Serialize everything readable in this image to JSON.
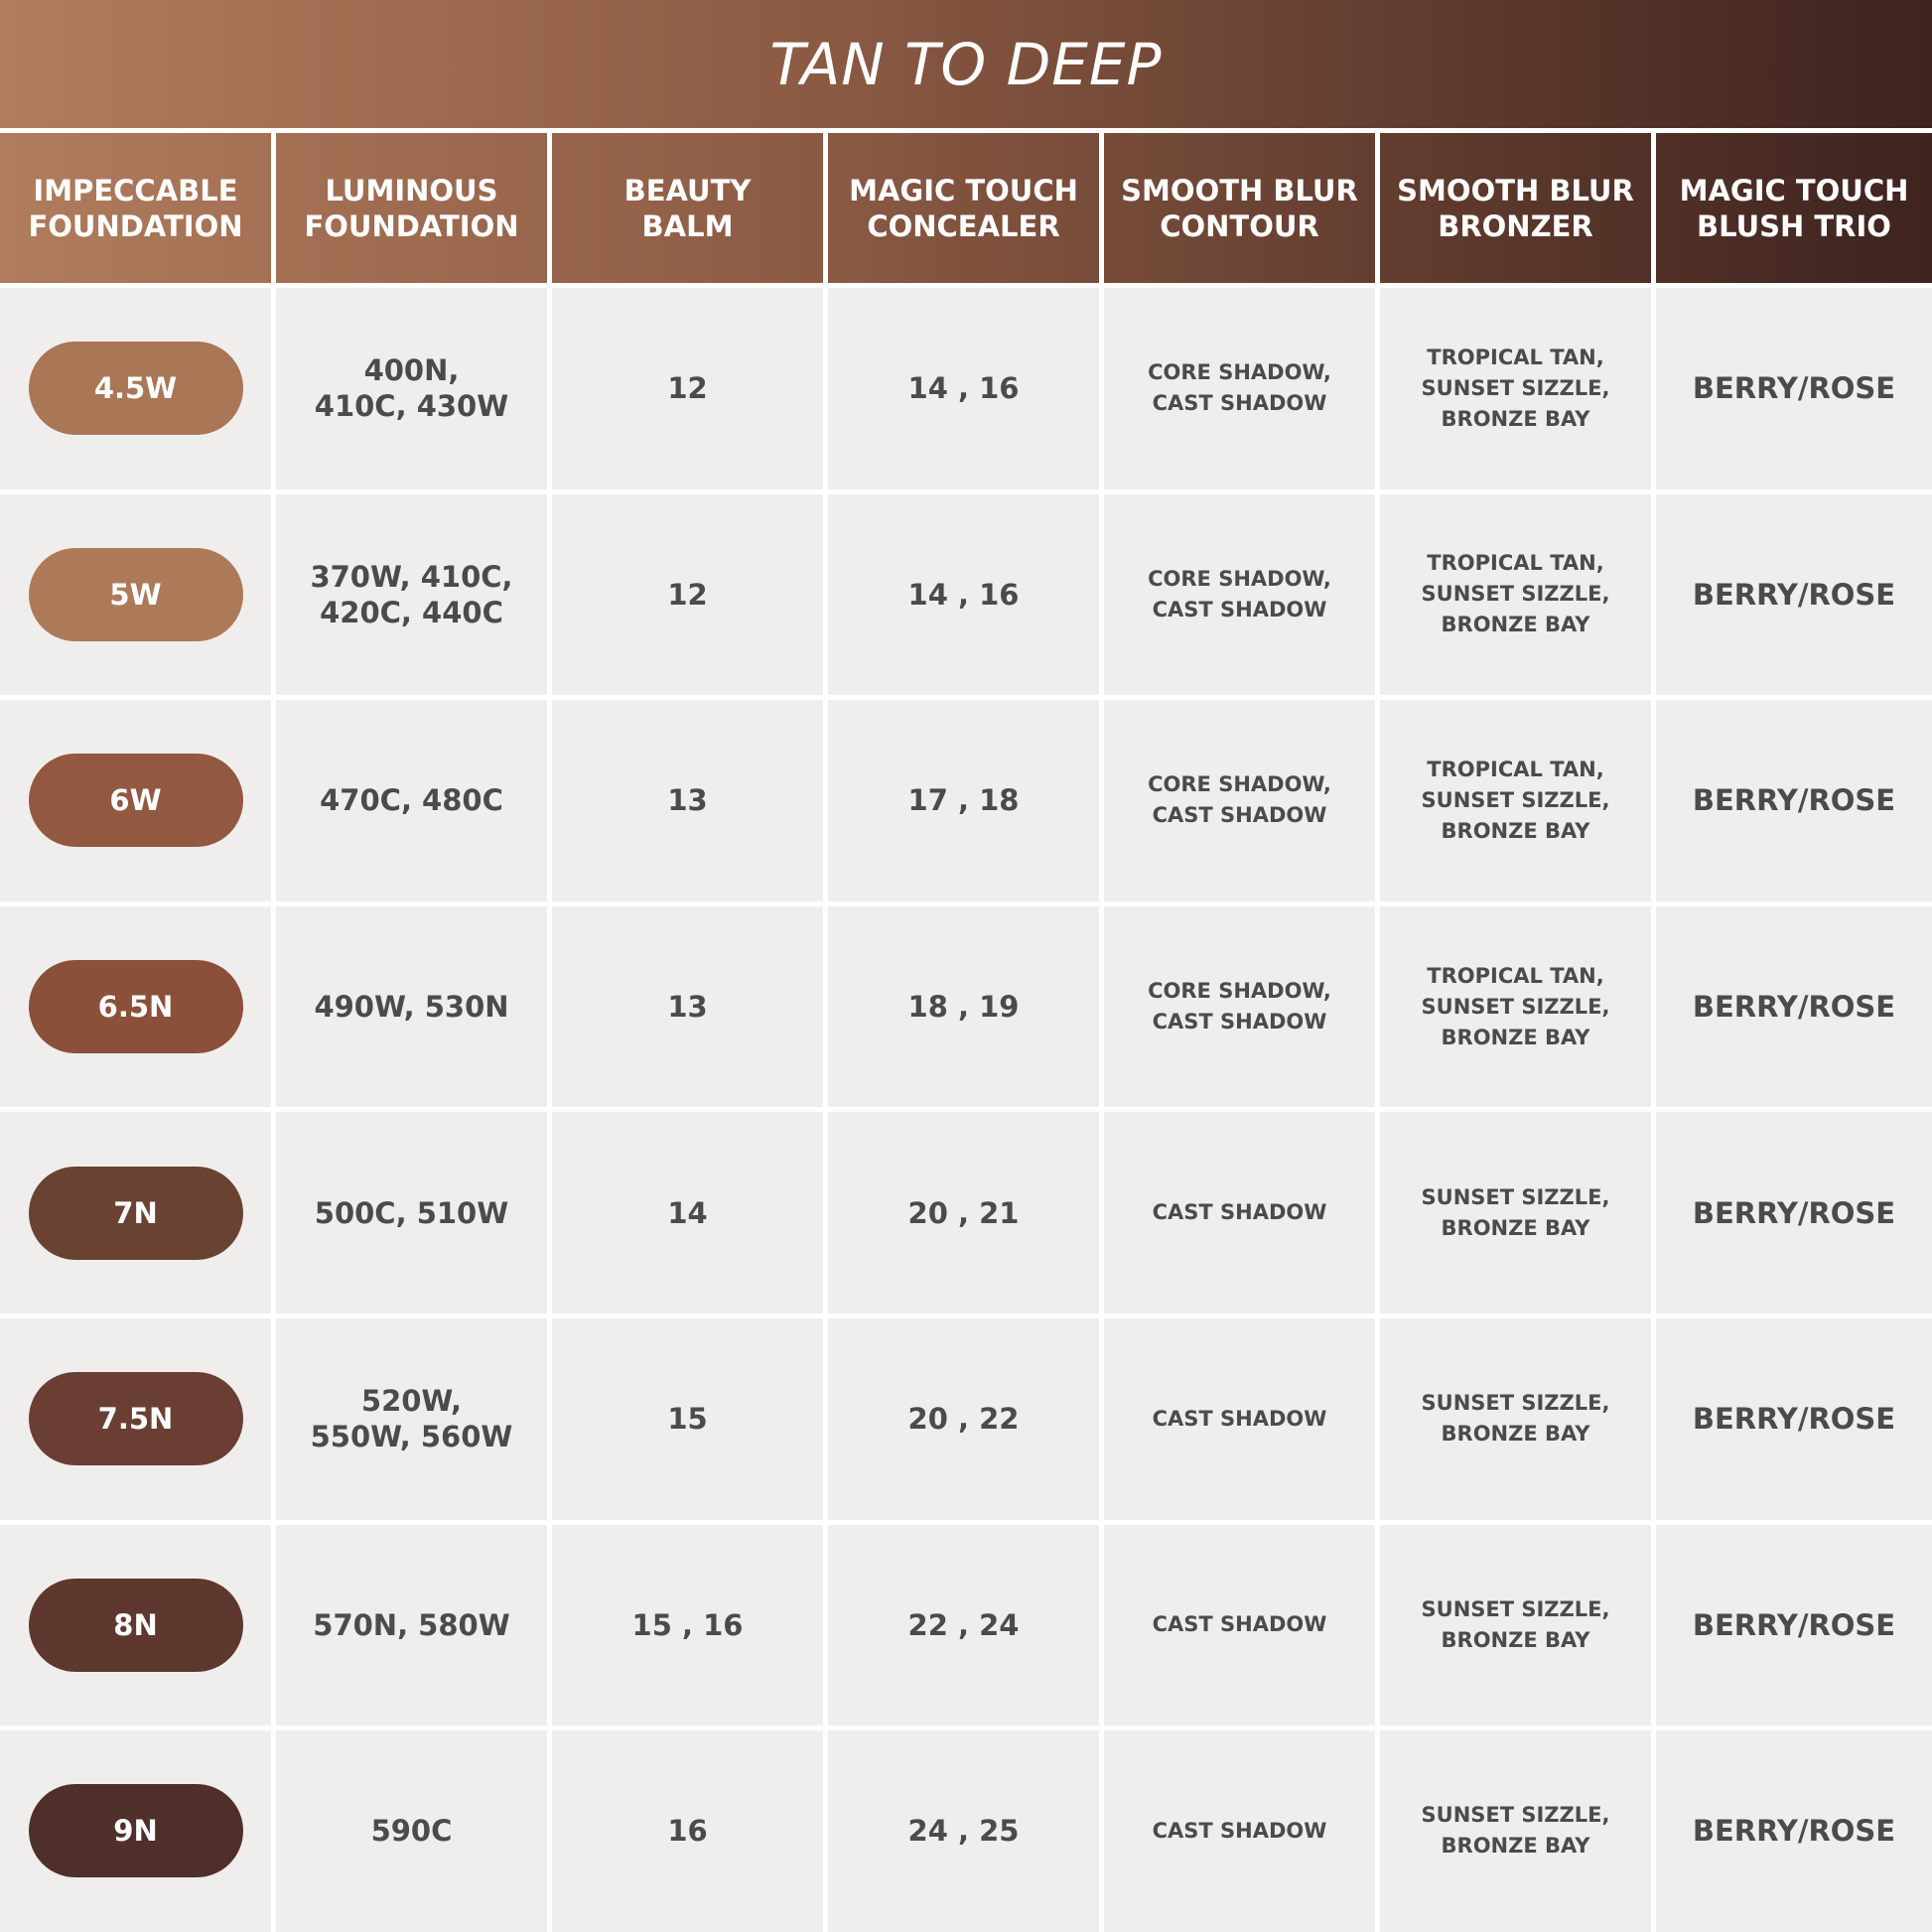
{
  "title": "TAN TO DEEP",
  "table": {
    "headers": [
      "IMPECCABLE\nFOUNDATION",
      "LUMINOUS\nFOUNDATION",
      "BEAUTY\nBALM",
      "MAGIC TOUCH\nCONCEALER",
      "SMOOTH BLUR\nCONTOUR",
      "SMOOTH BLUR\nBRONZER",
      "MAGIC TOUCH\nBLUSH TRIO"
    ],
    "swatch_colors": [
      "#a97656",
      "#ad7a59",
      "#925840",
      "#8b5039",
      "#6a4232",
      "#6a3e33",
      "#5e382e",
      "#4f2f2a"
    ],
    "rows": [
      [
        "4.5W",
        "400N,\n410C, 430W",
        "12",
        "14 , 16",
        "CORE SHADOW,\nCAST SHADOW",
        "TROPICAL TAN,\nSUNSET SIZZLE,\nBRONZE BAY",
        "BERRY/ROSE"
      ],
      [
        "5W",
        "370W, 410C,\n420C, 440C",
        "12",
        "14 , 16",
        "CORE SHADOW,\nCAST SHADOW",
        "TROPICAL TAN,\nSUNSET SIZZLE,\nBRONZE BAY",
        "BERRY/ROSE"
      ],
      [
        "6W",
        "470C, 480C",
        "13",
        "17 , 18",
        "CORE SHADOW,\nCAST SHADOW",
        "TROPICAL TAN,\nSUNSET SIZZLE,\nBRONZE BAY",
        "BERRY/ROSE"
      ],
      [
        "6.5N",
        "490W, 530N",
        "13",
        "18 , 19",
        "CORE SHADOW,\nCAST SHADOW",
        "TROPICAL TAN,\nSUNSET SIZZLE,\nBRONZE BAY",
        "BERRY/ROSE"
      ],
      [
        "7N",
        "500C, 510W",
        "14",
        "20 , 21",
        "CAST SHADOW",
        "SUNSET SIZZLE,\nBRONZE BAY",
        "BERRY/ROSE"
      ],
      [
        "7.5N",
        "520W,\n550W, 560W",
        "15",
        "20 , 22",
        "CAST SHADOW",
        "SUNSET SIZZLE,\nBRONZE BAY",
        "BERRY/ROSE"
      ],
      [
        "8N",
        "570N, 580W",
        "15 , 16",
        "22 , 24",
        "CAST SHADOW",
        "SUNSET SIZZLE,\nBRONZE BAY",
        "BERRY/ROSE"
      ],
      [
        "9N",
        "590C",
        "16",
        "24 , 25",
        "CAST SHADOW",
        "SUNSET SIZZLE,\nBRONZE BAY",
        "BERRY/ROSE"
      ]
    ]
  }
}
